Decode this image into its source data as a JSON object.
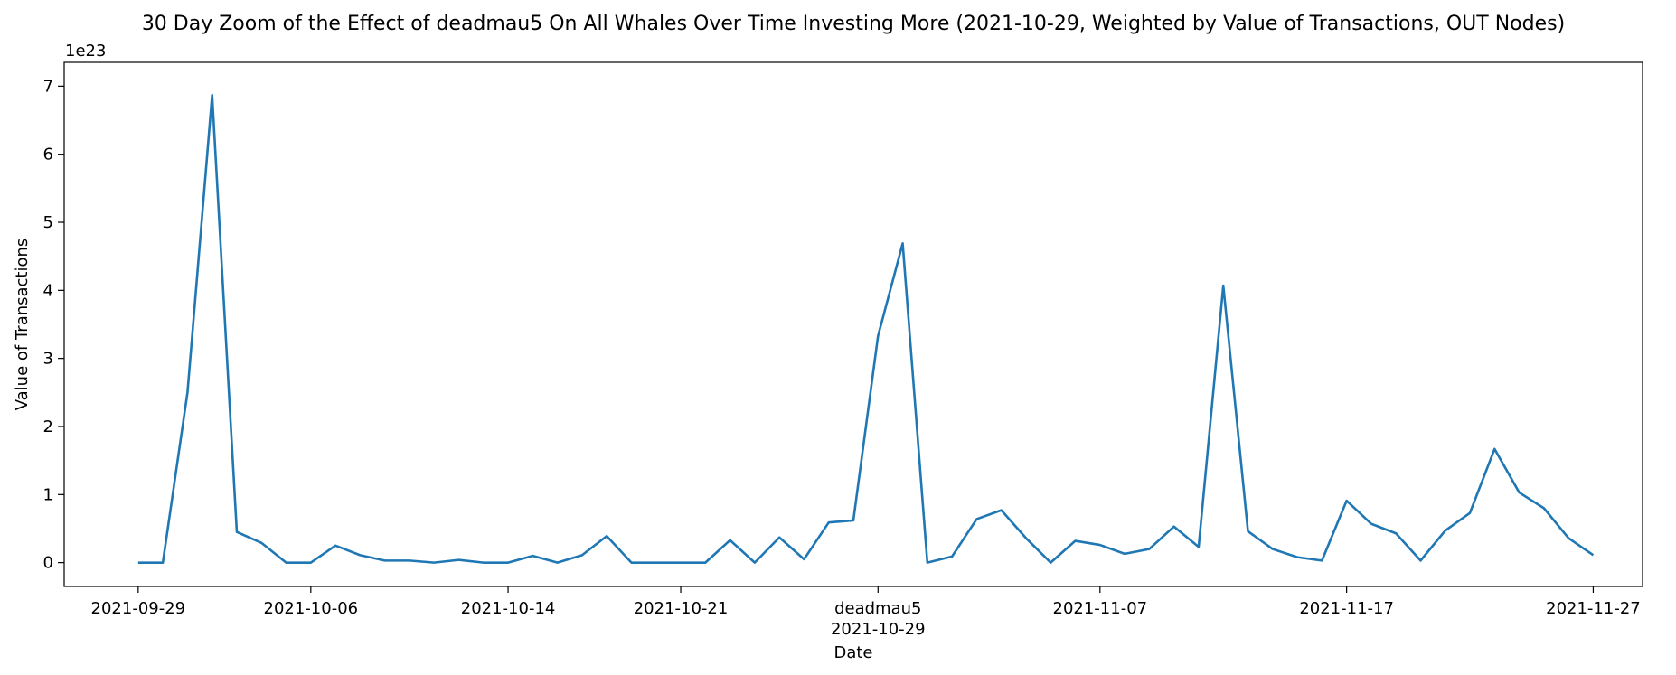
{
  "chart_data": {
    "type": "line",
    "title": "30 Day Zoom of the Effect of deadmau5 On All Whales Over Time Investing More (2021-10-29, Weighted by Value of Transactions, OUT Nodes)",
    "xlabel": "Date",
    "ylabel": "Value of Transactions",
    "y_offset_label": "1e23",
    "y_scale": 1e+23,
    "ylim": [
      -0.35,
      7.35
    ],
    "xlim": [
      "2021-09-26",
      "2021-11-29"
    ],
    "grid": false,
    "line_color": "#1f77b4",
    "event": {
      "label": "deadmau5",
      "date": "2021-10-29"
    },
    "x_ticks": [
      "2021-09-29",
      "2021-10-06",
      "2021-10-14",
      "2021-10-21",
      "2021-10-29",
      "2021-11-07",
      "2021-11-17",
      "2021-11-27"
    ],
    "y_ticks": [
      0,
      1,
      2,
      3,
      4,
      5,
      6,
      7
    ],
    "x": [
      "2021-09-29",
      "2021-09-30",
      "2021-10-01",
      "2021-10-02",
      "2021-10-03",
      "2021-10-04",
      "2021-10-05",
      "2021-10-06",
      "2021-10-07",
      "2021-10-08",
      "2021-10-09",
      "2021-10-10",
      "2021-10-11",
      "2021-10-12",
      "2021-10-13",
      "2021-10-14",
      "2021-10-15",
      "2021-10-16",
      "2021-10-17",
      "2021-10-18",
      "2021-10-19",
      "2021-10-20",
      "2021-10-21",
      "2021-10-22",
      "2021-10-23",
      "2021-10-24",
      "2021-10-25",
      "2021-10-26",
      "2021-10-27",
      "2021-10-28",
      "2021-10-29",
      "2021-10-30",
      "2021-10-31",
      "2021-11-01",
      "2021-11-02",
      "2021-11-03",
      "2021-11-04",
      "2021-11-05",
      "2021-11-06",
      "2021-11-07",
      "2021-11-08",
      "2021-11-09",
      "2021-11-10",
      "2021-11-11",
      "2021-11-12",
      "2021-11-13",
      "2021-11-14",
      "2021-11-15",
      "2021-11-16",
      "2021-11-17",
      "2021-11-18",
      "2021-11-19",
      "2021-11-20",
      "2021-11-21",
      "2021-11-22",
      "2021-11-23",
      "2021-11-24",
      "2021-11-25",
      "2021-11-26",
      "2021-11-27"
    ],
    "values": [
      0.0,
      0.0,
      2.5,
      6.87,
      0.45,
      0.29,
      0.0,
      0.0,
      0.25,
      0.11,
      0.03,
      0.03,
      0.0,
      0.04,
      0.0,
      0.0,
      0.1,
      0.0,
      0.11,
      0.39,
      0.0,
      0.0,
      0.0,
      0.0,
      0.33,
      0.0,
      0.37,
      0.05,
      0.59,
      0.62,
      3.33,
      4.69,
      0.0,
      0.09,
      0.64,
      0.77,
      0.36,
      0.0,
      0.32,
      0.26,
      0.13,
      0.2,
      0.53,
      0.23,
      4.07,
      0.46,
      0.2,
      0.08,
      0.03,
      0.91,
      0.57,
      0.43,
      0.03,
      0.47,
      0.73,
      1.67,
      1.03,
      0.8,
      0.36,
      0.11
    ]
  }
}
